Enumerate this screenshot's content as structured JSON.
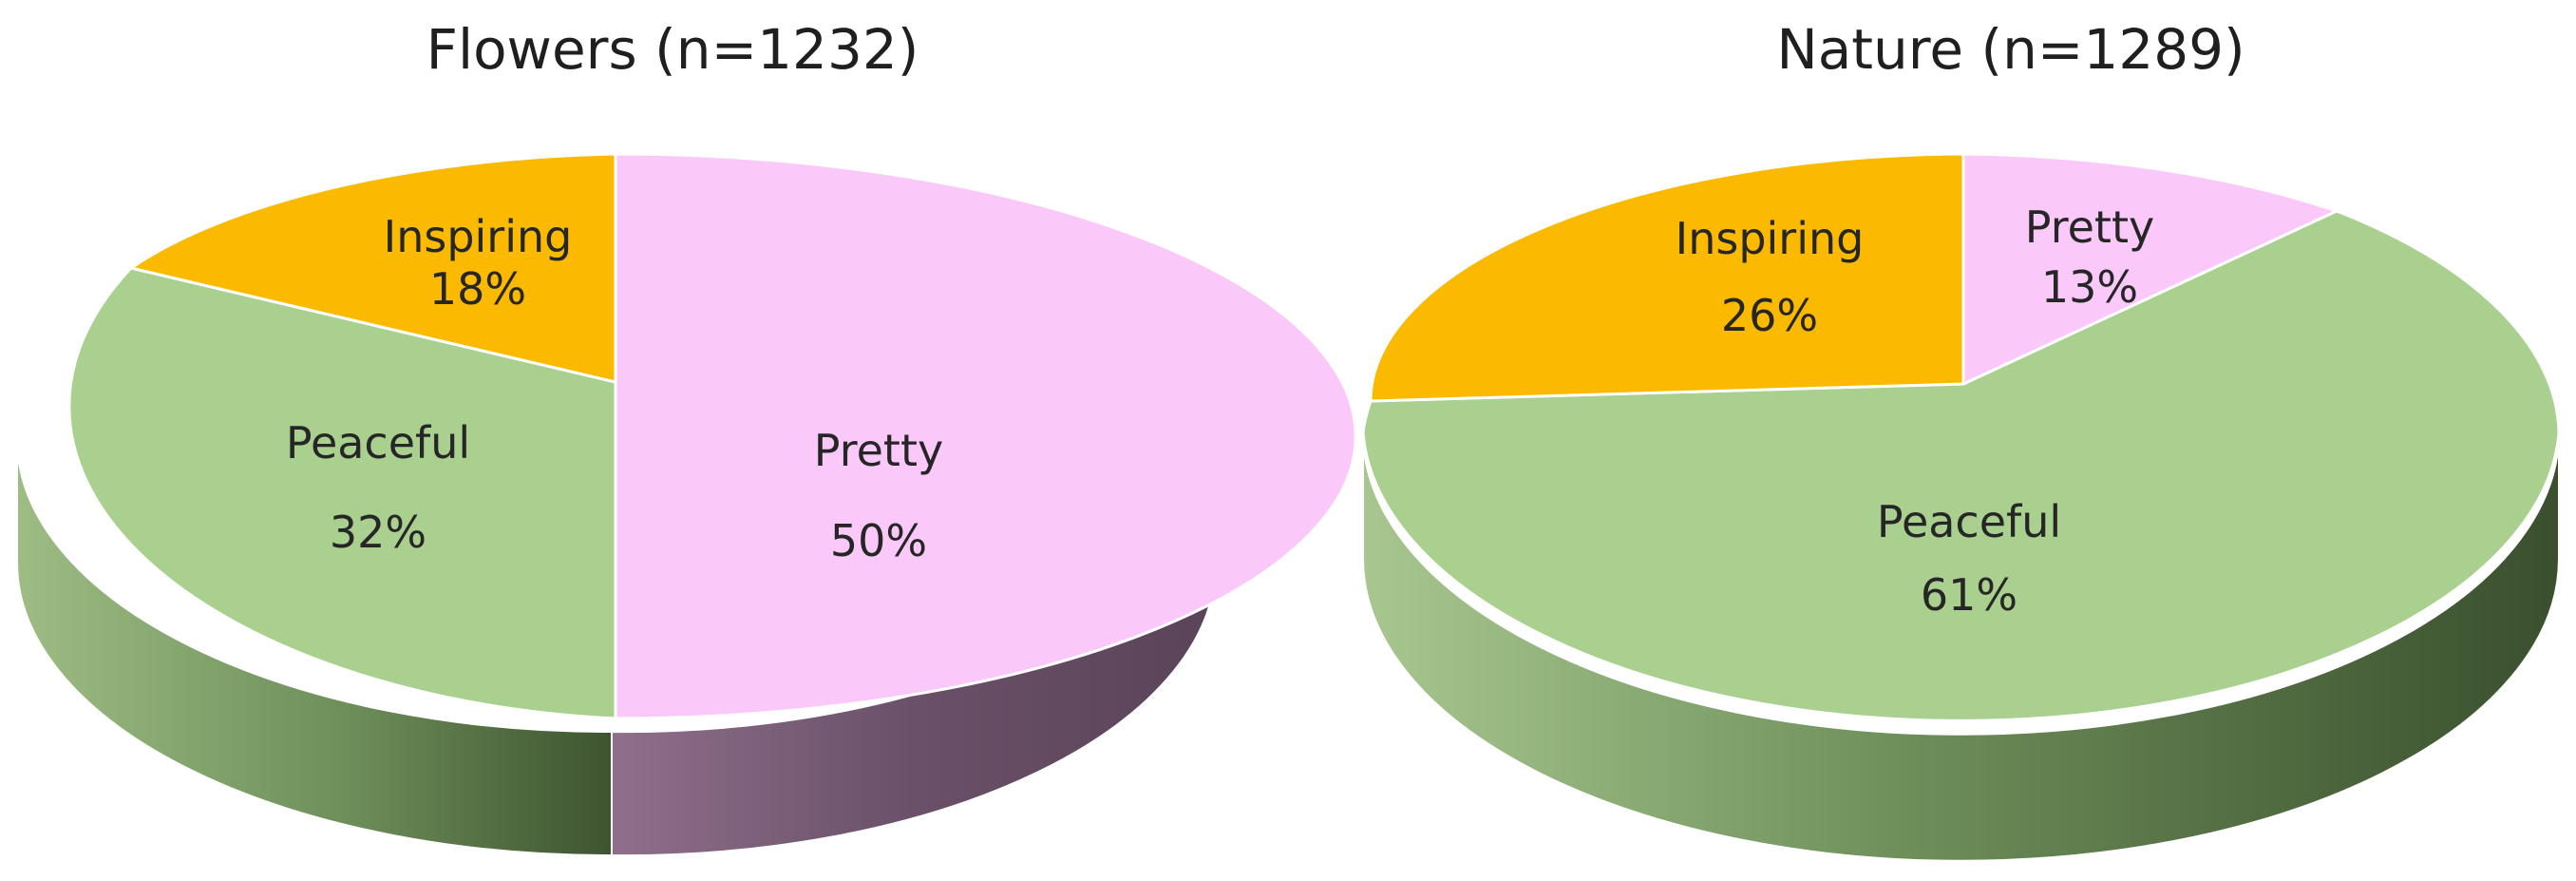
{
  "chart_data": [
    {
      "type": "pie",
      "title": "Flowers (n=1232)",
      "slices": [
        {
          "label": "Pretty",
          "percent_label": "50%",
          "value": 50,
          "color": "#fbc8fa",
          "side_color": "#6a5368"
        },
        {
          "label": "Peaceful",
          "percent_label": "32%",
          "value": 32,
          "color": "#a9d08e",
          "side_color": "#6d8f58"
        },
        {
          "label": "Inspiring",
          "percent_label": "18%",
          "value": 18,
          "color": "#fbb900",
          "side_color": "#a37800"
        }
      ]
    },
    {
      "type": "pie",
      "title": "Nature (n=1289)",
      "slices": [
        {
          "label": "Pretty",
          "percent_label": "13%",
          "value": 13,
          "color": "#fbc8fa",
          "side_color": "#6a5368"
        },
        {
          "label": "Peaceful",
          "percent_label": "61%",
          "value": 61,
          "color": "#a9d08e",
          "side_color": "#4d6a3c"
        },
        {
          "label": "Inspiring",
          "percent_label": "26%",
          "value": 26,
          "color": "#fbb900",
          "side_color": "#a37800"
        }
      ]
    }
  ]
}
